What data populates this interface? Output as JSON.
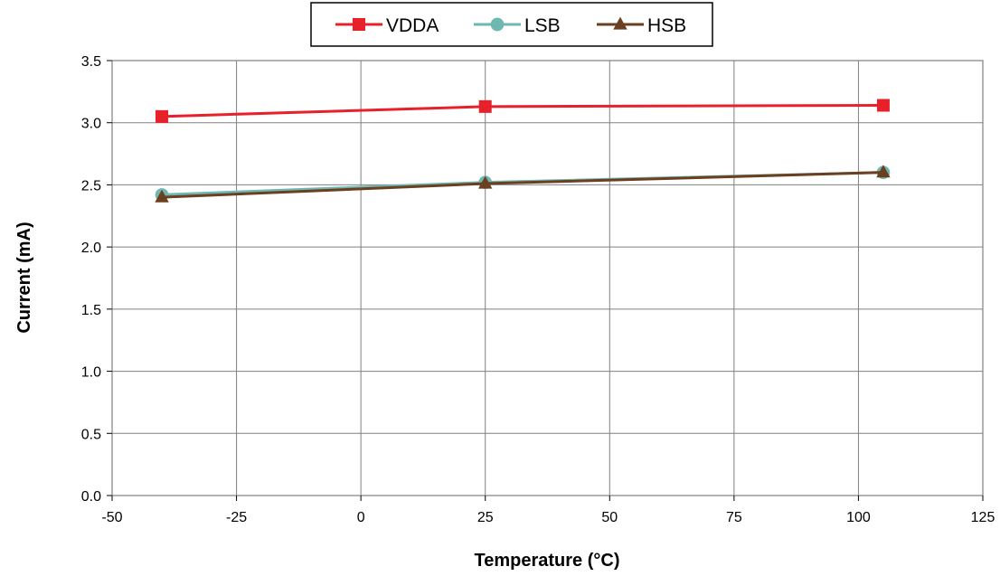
{
  "chart_data": {
    "type": "line",
    "xlabel": "Temperature (°C)",
    "ylabel": "Current (mA)",
    "xlim": [
      -50,
      125
    ],
    "ylim": [
      0,
      3.5
    ],
    "xticks": [
      -50,
      -25,
      0,
      25,
      50,
      75,
      100,
      125
    ],
    "yticks": [
      0,
      0.5,
      1,
      1.5,
      2,
      2.5,
      3,
      3.5
    ],
    "xtick_labels": [
      "-50",
      "-25",
      "0",
      "25",
      "50",
      "75",
      "100",
      "125"
    ],
    "ytick_labels": [
      "0.0",
      "0.5",
      "1.0",
      "1.5",
      "2.0",
      "2.5",
      "3.0",
      "3.5"
    ],
    "grid": true,
    "legend_position": "top-center",
    "x": [
      -40,
      25,
      105
    ],
    "series": [
      {
        "name": "VDDA",
        "values": [
          3.05,
          3.13,
          3.14
        ],
        "color": "#e8202a",
        "marker": "square"
      },
      {
        "name": "LSB",
        "values": [
          2.42,
          2.52,
          2.6
        ],
        "color": "#6fb7b1",
        "marker": "circle"
      },
      {
        "name": "HSB",
        "values": [
          2.4,
          2.51,
          2.6
        ],
        "color": "#6b3f1f",
        "marker": "triangle"
      }
    ]
  }
}
